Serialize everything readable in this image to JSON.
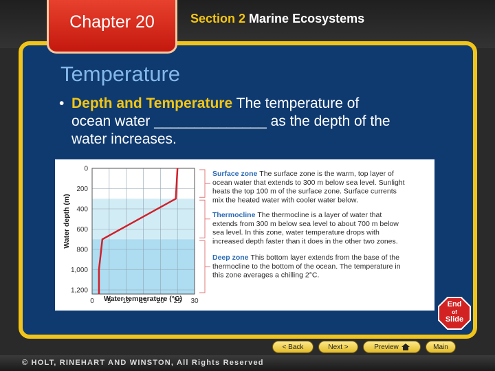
{
  "header": {
    "chapter": "Chapter 20",
    "section_prefix": "Section 2",
    "section_title": "Marine Ecosystems"
  },
  "slide": {
    "heading": "Temperature",
    "bullet_term": "Depth and Temperature",
    "bullet_line1": "The temperature of",
    "bullet_line2": "ocean water ______________ as the depth of the",
    "bullet_line3": "water increases."
  },
  "figure": {
    "ylabel": "Water depth (m)",
    "xlabel": "Water temperature (°C)",
    "y_ticks": [
      "0",
      "200",
      "400",
      "600",
      "800",
      "1,000",
      "1,200"
    ],
    "x_ticks": [
      "0",
      "5",
      "10",
      "15",
      "20",
      "25",
      "30"
    ],
    "zones": [
      {
        "title": "Surface zone",
        "lines": [
          "The surface zone is the warm, top layer of",
          "ocean water that extends to 300 m below sea level. Sunlight",
          "heats the top 100 m of the surface zone. Surface currents",
          "mix the heated water with cooler water below."
        ]
      },
      {
        "title": "Thermocline",
        "lines": [
          "The thermocline is a layer of water that",
          "extends from 300 m below sea level to about 700 m below",
          "sea level. In this zone, water temperature drops with",
          "increased depth faster than it does in the other two zones."
        ]
      },
      {
        "title": "Deep zone",
        "lines": [
          "This bottom layer extends from the base of the",
          "thermocline to the bottom of the ocean. The temperature in",
          "this zone averages a chilling 2°C."
        ]
      }
    ],
    "profile": {
      "x": [
        25,
        24.5,
        3,
        2,
        2
      ],
      "y": [
        0,
        300,
        700,
        1000,
        1250
      ]
    },
    "zone_boundaries_m": [
      300,
      700
    ],
    "colors": {
      "surface": "#ffffff",
      "thermocline": "#d2ecf6",
      "deep": "#aedcf0",
      "curve": "#d0202a",
      "title": "#2a6ab6"
    }
  },
  "nav": {
    "end_line1": "End",
    "end_line2": "of",
    "end_line3": "Slide",
    "back": "< Back",
    "next": "Next >",
    "preview": "Preview",
    "main": "Main"
  },
  "footer": {
    "copyright": "© HOLT, RINEHART AND WINSTON, All Rights Reserved"
  }
}
